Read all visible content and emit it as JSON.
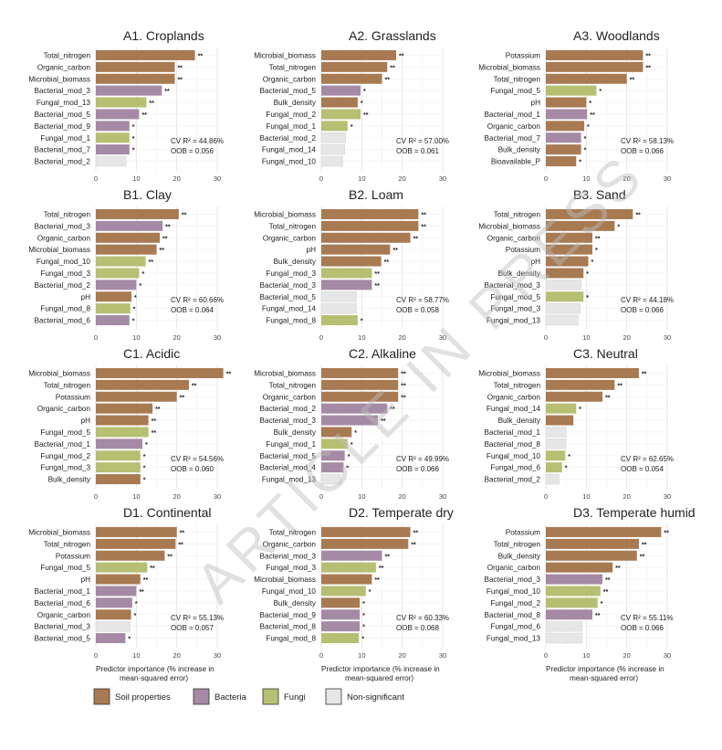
{
  "colors": {
    "soil": "#a87a52",
    "bacteria": "#a58aa5",
    "fungi": "#b6bf72",
    "nonsig": "#e6e6e6",
    "grid": "#e0e0e0",
    "text": "#222222"
  },
  "watermark": "ARTICLE IN PRESS",
  "axis_label": "Predictor importance (% increase in mean-squared error)",
  "legend": [
    {
      "key": "soil",
      "label": "Soil properties"
    },
    {
      "key": "bacteria",
      "label": "Bacteria"
    },
    {
      "key": "fungi",
      "label": "Fungi"
    },
    {
      "key": "nonsig",
      "label": "Non-significant"
    }
  ],
  "chart_data": [
    {
      "type": "bar",
      "orientation": "horizontal",
      "title": "A1. Croplands",
      "cv_r2": "CV R² = 44.86%",
      "oob": "OOB = 0.056",
      "xlim": [
        0,
        30
      ],
      "ticks": [
        0,
        10,
        20,
        30
      ],
      "show_xlabel": false,
      "categories": [
        "Total_nitrogen",
        "Organic_carbon",
        "Microbial_biomass",
        "Bacterial_mod_3",
        "Fungal_mod_13",
        "Bacterial_mod_5",
        "Bacterial_mod_9",
        "Fungal_mod_1",
        "Bacterial_mod_7",
        "Bacterial_mod_2"
      ],
      "values": [
        24.5,
        19.5,
        19.5,
        16.3,
        12.5,
        10.7,
        8.3,
        8.3,
        8.3,
        7.5
      ],
      "groups": [
        "soil",
        "soil",
        "soil",
        "bacteria",
        "fungi",
        "bacteria",
        "bacteria",
        "fungi",
        "bacteria",
        "nonsig"
      ],
      "sig": [
        "**",
        "**",
        "**",
        "**",
        "**",
        "**",
        "*",
        "*",
        "*",
        ""
      ]
    },
    {
      "type": "bar",
      "orientation": "horizontal",
      "title": "A2. Grasslands",
      "cv_r2": "CV R² = 57.00%",
      "oob": "OOB = 0.061",
      "xlim": [
        0,
        30
      ],
      "ticks": [
        0,
        10,
        20,
        30
      ],
      "show_xlabel": false,
      "categories": [
        "Microbial_biomass",
        "Total_nitrogen",
        "Organic_carbon",
        "Bacterial_mod_5",
        "Bulk_density",
        "Fungal_mod_2",
        "Fungal_mod_1",
        "Bacterial_mod_2",
        "Fungal_mod_14",
        "Fungal_mod_10"
      ],
      "values": [
        18.5,
        16.3,
        15.0,
        9.7,
        9.0,
        9.7,
        6.5,
        6.0,
        5.8,
        5.3
      ],
      "groups": [
        "soil",
        "soil",
        "soil",
        "bacteria",
        "soil",
        "fungi",
        "fungi",
        "nonsig",
        "nonsig",
        "nonsig"
      ],
      "sig": [
        "**",
        "**",
        "**",
        "*",
        "*",
        "**",
        "*",
        "",
        "",
        ""
      ]
    },
    {
      "type": "bar",
      "orientation": "horizontal",
      "title": "A3. Woodlands",
      "cv_r2": "CV R² = 58.13%",
      "oob": "OOB = 0.066",
      "xlim": [
        0,
        30
      ],
      "ticks": [
        0,
        10,
        20,
        30
      ],
      "show_xlabel": false,
      "categories": [
        "Potassium",
        "Microbial_biomass",
        "Total_nitrogen",
        "Fungal_mod_5",
        "pH",
        "Bacterial_mod_1",
        "Organic_carbon",
        "Bacterial_mod_7",
        "Bulk_density",
        "Bioavailable_P"
      ],
      "values": [
        24.0,
        24.0,
        20.0,
        12.5,
        10.0,
        10.2,
        9.5,
        8.7,
        8.7,
        7.5
      ],
      "groups": [
        "soil",
        "soil",
        "soil",
        "fungi",
        "soil",
        "bacteria",
        "soil",
        "bacteria",
        "soil",
        "soil"
      ],
      "sig": [
        "**",
        "**",
        "**",
        "*",
        "*",
        "**",
        "*",
        "*",
        "*",
        "*"
      ]
    },
    {
      "type": "bar",
      "orientation": "horizontal",
      "title": "B1. Clay",
      "cv_r2": "CV R² = 60.66%",
      "oob": "OOB = 0.064",
      "xlim": [
        0,
        30
      ],
      "ticks": [
        0,
        10,
        20,
        30
      ],
      "show_xlabel": false,
      "categories": [
        "Total_nitrogen",
        "Bacterial_mod_3",
        "Organic_carbon",
        "Microbial_biomass",
        "Fungal_mod_10",
        "Fungal_mod_3",
        "Bacterial_mod_2",
        "pH",
        "Fungal_mod_8",
        "Bacterial_mod_6"
      ],
      "values": [
        20.5,
        16.5,
        15.8,
        15.0,
        12.3,
        10.7,
        10.0,
        8.8,
        8.5,
        8.3
      ],
      "groups": [
        "soil",
        "bacteria",
        "soil",
        "soil",
        "fungi",
        "fungi",
        "bacteria",
        "soil",
        "fungi",
        "bacteria"
      ],
      "sig": [
        "**",
        "**",
        "**",
        "**",
        "**",
        "*",
        "*",
        "*",
        "*",
        "*"
      ]
    },
    {
      "type": "bar",
      "orientation": "horizontal",
      "title": "B2. Loam",
      "cv_r2": "CV R² = 58.77%",
      "oob": "OOB = 0.058",
      "xlim": [
        0,
        30
      ],
      "ticks": [
        0,
        10,
        20,
        30
      ],
      "show_xlabel": false,
      "categories": [
        "Microbial_biomass",
        "Total_nitrogen",
        "Organic_carbon",
        "pH",
        "Bulk_density",
        "Fungal_mod_3",
        "Bacterial_mod_3",
        "Bacterial_mod_5",
        "Fungal_mod_14",
        "Fungal_mod_8"
      ],
      "values": [
        24.0,
        24.0,
        22.0,
        17.0,
        14.8,
        12.5,
        12.5,
        8.7,
        8.7,
        9.0
      ],
      "groups": [
        "soil",
        "soil",
        "soil",
        "soil",
        "soil",
        "fungi",
        "bacteria",
        "nonsig",
        "nonsig",
        "fungi"
      ],
      "sig": [
        "**",
        "**",
        "**",
        "**",
        "**",
        "**",
        "**",
        "",
        "",
        "*"
      ]
    },
    {
      "type": "bar",
      "orientation": "horizontal",
      "title": "B3. Sand",
      "cv_r2": "CV R² = 44.18%",
      "oob": "OOB = 0.066",
      "xlim": [
        0,
        30
      ],
      "ticks": [
        0,
        10,
        20,
        30
      ],
      "show_xlabel": false,
      "categories": [
        "Total_nitrogen",
        "Microbial_biomass",
        "Organic_carbon",
        "Potassium",
        "pH",
        "Bulk_density",
        "Bacterial_mod_3",
        "Fungal_mod_5",
        "Fungal_mod_3",
        "Fungal_mod_13"
      ],
      "values": [
        21.5,
        17.0,
        11.5,
        11.5,
        10.5,
        9.3,
        8.7,
        9.3,
        8.5,
        8.0
      ],
      "groups": [
        "soil",
        "soil",
        "soil",
        "soil",
        "soil",
        "soil",
        "nonsig",
        "fungi",
        "nonsig",
        "nonsig"
      ],
      "sig": [
        "**",
        "*",
        "**",
        "*",
        "*",
        "*",
        "",
        "*",
        "",
        ""
      ]
    },
    {
      "type": "bar",
      "orientation": "horizontal",
      "title": "C1. Acidic",
      "cv_r2": "CV R² = 54.56%",
      "oob": "OOB = 0.060",
      "xlim": [
        0,
        30
      ],
      "ticks": [
        0,
        10,
        20,
        30
      ],
      "show_xlabel": false,
      "categories": [
        "Microbial_biomass",
        "Total_nitrogen",
        "Potassium",
        "Organic_carbon",
        "pH",
        "Fungal_mod_5",
        "Bacterial_mod_1",
        "Fungal_mod_2",
        "Fungal_mod_3",
        "Bulk_density"
      ],
      "values": [
        31.5,
        23.0,
        20.0,
        14.0,
        13.0,
        13.0,
        11.5,
        11.0,
        11.0,
        11.0
      ],
      "groups": [
        "soil",
        "soil",
        "soil",
        "soil",
        "soil",
        "fungi",
        "bacteria",
        "fungi",
        "fungi",
        "soil"
      ],
      "sig": [
        "**",
        "**",
        "**",
        "**",
        "**",
        "**",
        "*",
        "*",
        "*",
        "*"
      ]
    },
    {
      "type": "bar",
      "orientation": "horizontal",
      "title": "C2. Alkaline",
      "cv_r2": "CV R² = 49.99%",
      "oob": "OOB = 0.066",
      "xlim": [
        0,
        30
      ],
      "ticks": [
        0,
        10,
        20,
        30
      ],
      "show_xlabel": false,
      "categories": [
        "Microbial_biomass",
        "Total_nitrogen",
        "Organic_carbon",
        "Bacterial_mod_2",
        "Bacterial_mod_3",
        "Bulk_density",
        "Fungal_mod_1",
        "Bacterial_mod_5",
        "Bacterial_mod_4",
        "Fungal_mod_13"
      ],
      "values": [
        19.0,
        19.0,
        19.0,
        16.3,
        14.0,
        7.5,
        6.5,
        5.8,
        5.5,
        4.8
      ],
      "groups": [
        "soil",
        "soil",
        "soil",
        "bacteria",
        "bacteria",
        "soil",
        "fungi",
        "bacteria",
        "bacteria",
        "nonsig"
      ],
      "sig": [
        "**",
        "**",
        "**",
        "**",
        "**",
        "*",
        "*",
        "*",
        "*",
        ""
      ]
    },
    {
      "type": "bar",
      "orientation": "horizontal",
      "title": "C3. Neutral",
      "cv_r2": "CV R² = 62.65%",
      "oob": "OOB = 0.054",
      "xlim": [
        0,
        30
      ],
      "ticks": [
        0,
        10,
        20,
        30
      ],
      "show_xlabel": false,
      "categories": [
        "Microbial_biomass",
        "Total_nitrogen",
        "Organic_carbon",
        "Fungal_mod_14",
        "Bulk_density",
        "Bacterial_mod_1",
        "Bacterial_mod_8",
        "Fungal_mod_10",
        "Fungal_mod_6",
        "Bacterial_mod_2"
      ],
      "values": [
        23.0,
        17.0,
        14.0,
        7.5,
        6.8,
        5.0,
        5.0,
        4.8,
        4.0,
        3.3
      ],
      "groups": [
        "soil",
        "soil",
        "soil",
        "fungi",
        "soil",
        "nonsig",
        "nonsig",
        "fungi",
        "fungi",
        "nonsig"
      ],
      "sig": [
        "**",
        "**",
        "**",
        "*",
        "",
        "",
        "",
        "*",
        "*",
        ""
      ]
    },
    {
      "type": "bar",
      "orientation": "horizontal",
      "title": "D1. Continental",
      "cv_r2": "CV R² = 55.13%",
      "oob": "OOB = 0.057",
      "xlim": [
        0,
        30
      ],
      "ticks": [
        0,
        10,
        20,
        30
      ],
      "show_xlabel": true,
      "categories": [
        "Microbial_biomass",
        "Total_nitrogen",
        "Potassium",
        "Fungal_mod_5",
        "pH",
        "Bacterial_mod_1",
        "Bacterial_mod_6",
        "Organic_carbon",
        "Bacterial_mod_3",
        "Bacterial_mod_5"
      ],
      "values": [
        20.0,
        19.7,
        17.0,
        12.7,
        11.0,
        10.0,
        9.0,
        8.7,
        8.5,
        7.3
      ],
      "groups": [
        "soil",
        "soil",
        "soil",
        "fungi",
        "soil",
        "bacteria",
        "bacteria",
        "soil",
        "nonsig",
        "bacteria"
      ],
      "sig": [
        "**",
        "**",
        "**",
        "**",
        "**",
        "**",
        "*",
        "*",
        "",
        "*"
      ]
    },
    {
      "type": "bar",
      "orientation": "horizontal",
      "title": "D2. Temperate dry",
      "cv_r2": "CV R² = 60.33%",
      "oob": "OOB = 0.068",
      "xlim": [
        0,
        30
      ],
      "ticks": [
        0,
        10,
        20,
        30
      ],
      "show_xlabel": true,
      "categories": [
        "Total_nitrogen",
        "Organic_carbon",
        "Bacterial_mod_3",
        "Fungal_mod_3",
        "Microbial_biomass",
        "Fungal_mod_10",
        "Bulk_density",
        "Bacterial_mod_9",
        "Bacterial_mod_8",
        "Fungal_mod_8"
      ],
      "values": [
        22.0,
        21.5,
        15.0,
        13.5,
        12.5,
        11.0,
        9.5,
        9.5,
        9.5,
        9.3
      ],
      "groups": [
        "soil",
        "soil",
        "bacteria",
        "fungi",
        "soil",
        "fungi",
        "soil",
        "bacteria",
        "bacteria",
        "fungi"
      ],
      "sig": [
        "**",
        "**",
        "**",
        "**",
        "**",
        "*",
        "*",
        "*",
        "*",
        "*"
      ]
    },
    {
      "type": "bar",
      "orientation": "horizontal",
      "title": "D3. Temperate humid",
      "cv_r2": "CV R² = 55.11%",
      "oob": "OOB = 0.066",
      "xlim": [
        0,
        30
      ],
      "ticks": [
        0,
        10,
        20,
        30
      ],
      "show_xlabel": true,
      "categories": [
        "Potassium",
        "Total_nitrogen",
        "Bulk_density",
        "Organic_carbon",
        "Bacterial_mod_3",
        "Fungal_mod_10",
        "Fungal_mod_2",
        "Bacterial_mod_8",
        "Fungal_mod_6",
        "Fungal_mod_13"
      ],
      "values": [
        28.5,
        23.0,
        22.5,
        16.5,
        14.0,
        13.5,
        12.8,
        11.5,
        9.0,
        9.0
      ],
      "groups": [
        "soil",
        "soil",
        "soil",
        "soil",
        "bacteria",
        "fungi",
        "fungi",
        "bacteria",
        "nonsig",
        "nonsig"
      ],
      "sig": [
        "**",
        "**",
        "**",
        "**",
        "**",
        "**",
        "*",
        "**",
        "",
        ""
      ]
    }
  ]
}
